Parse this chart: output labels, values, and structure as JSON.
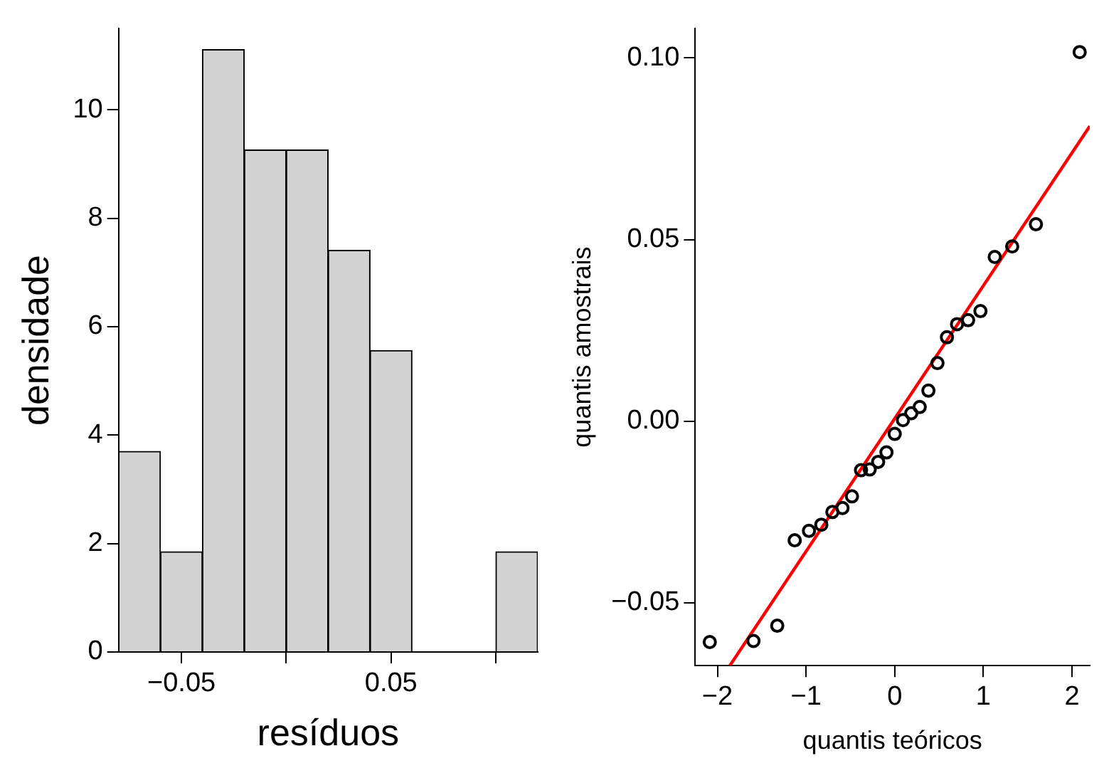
{
  "chart_data": [
    {
      "type": "histogram",
      "xlabel": "resíduos",
      "ylabel": "densidade",
      "bins": [
        -0.08,
        -0.06,
        -0.04,
        -0.02,
        0,
        0.02,
        0.04,
        0.06,
        0.08,
        0.1,
        0.12
      ],
      "values": [
        3.7,
        1.85,
        11.11,
        9.26,
        9.26,
        7.41,
        5.56,
        0,
        0,
        1.85
      ],
      "color": "#d3d3d3",
      "xlim": [
        -0.08,
        0.12
      ],
      "xticks": [
        {
          "value": -0.05,
          "label": "−0.05"
        },
        {
          "value": 0,
          "label": null
        },
        {
          "value": 0.05,
          "label": "0.05"
        },
        {
          "value": 0.1,
          "label": null
        }
      ],
      "ylim": [
        0,
        11.5
      ],
      "yticks": [
        0,
        2,
        4,
        6,
        8,
        10
      ],
      "grid": false,
      "legend": false
    },
    {
      "type": "scatter",
      "xlabel": "quantis teóricos",
      "ylabel": "quantis amostrais",
      "grid": false,
      "legend": false,
      "xlim": [
        -2.25,
        2.2
      ],
      "xticks": [
        {
          "value": -2,
          "label": "−2"
        },
        {
          "value": -1,
          "label": "−1"
        },
        0,
        1,
        2
      ],
      "ylim": [
        -0.0673,
        0.1081
      ],
      "yticks": [
        {
          "value": -0.05,
          "label": "−0.05"
        },
        {
          "value": 0,
          "label": "0.00"
        },
        {
          "value": 0.05,
          "label": "0.05"
        },
        {
          "value": 0.1,
          "label": "0.10"
        }
      ],
      "series": [
        {
          "type": "scatter",
          "marker": "circle",
          "color": "#000000",
          "x": [
            -2.086,
            -1.593,
            -1.325,
            -1.128,
            -0.967,
            -0.828,
            -0.703,
            -0.589,
            -0.482,
            -0.38,
            -0.282,
            -0.187,
            -0.093,
            0,
            0.093,
            0.187,
            0.282,
            0.38,
            0.482,
            0.589,
            0.703,
            0.828,
            0.967,
            1.128,
            1.325,
            1.593,
            2.086
          ],
          "values": [
            -0.0608,
            -0.0605,
            -0.0563,
            -0.0328,
            -0.0302,
            -0.0285,
            -0.025,
            -0.0239,
            -0.0207,
            -0.0135,
            -0.0133,
            -0.0112,
            -0.0086,
            -0.0035,
            0.0003,
            0.0022,
            0.0039,
            0.0084,
            0.016,
            0.0231,
            0.0267,
            0.0278,
            0.0303,
            0.0452,
            0.0481,
            0.0542,
            0.1016
          ]
        },
        {
          "type": "line",
          "color": "#ff0000",
          "x": [
            -1.86,
            2.2
          ],
          "values": [
            -0.0673,
            0.0812
          ]
        }
      ]
    }
  ]
}
